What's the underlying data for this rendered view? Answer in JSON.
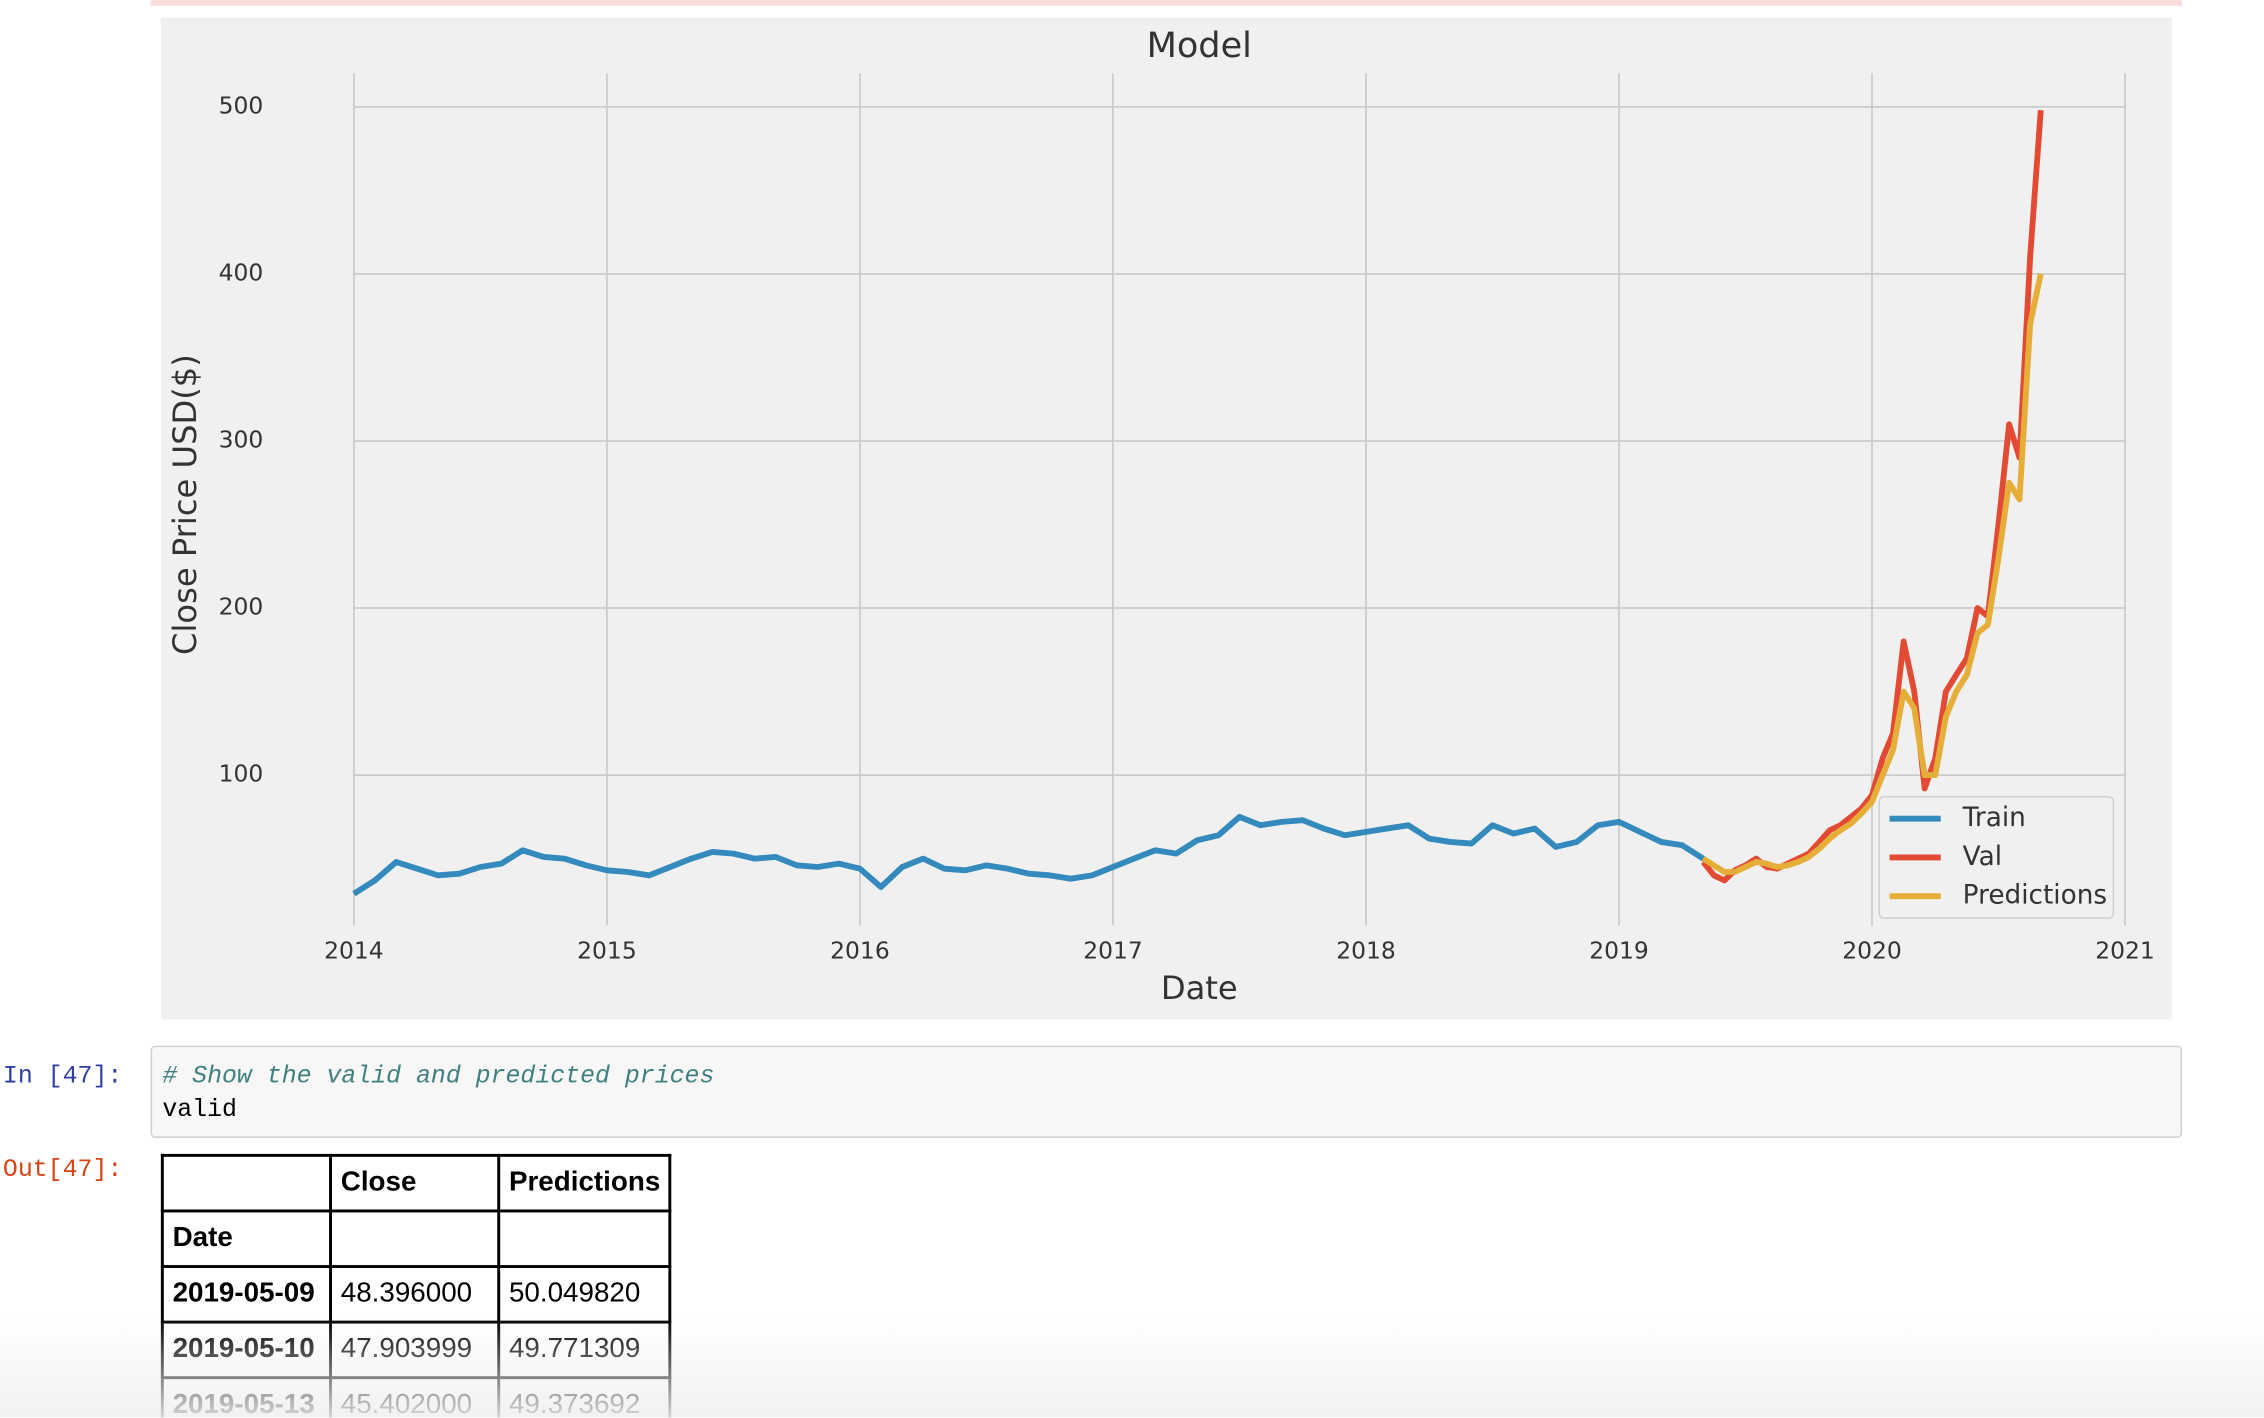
{
  "chart_data": {
    "type": "line",
    "title": "Model",
    "x_label": "Date",
    "y_label": "Close Price USD($)",
    "xlim": [
      2014,
      2021
    ],
    "xticks": [
      2014,
      2015,
      2016,
      2017,
      2018,
      2019,
      2020,
      2021
    ],
    "ylim": [
      10,
      520
    ],
    "yticks": [
      100,
      200,
      300,
      400,
      500
    ],
    "grid": true,
    "legend": "lower right",
    "series": [
      {
        "name": "Train",
        "color": "#348abd",
        "x": [
          2014,
          2014.083,
          2014.167,
          2014.25,
          2014.333,
          2014.417,
          2014.5,
          2014.583,
          2014.667,
          2014.75,
          2014.833,
          2014.917,
          2015,
          2015.083,
          2015.167,
          2015.25,
          2015.333,
          2015.417,
          2015.5,
          2015.583,
          2015.667,
          2015.75,
          2015.833,
          2015.917,
          2016,
          2016.083,
          2016.167,
          2016.25,
          2016.333,
          2016.417,
          2016.5,
          2016.583,
          2016.667,
          2016.75,
          2016.833,
          2016.917,
          2017,
          2017.083,
          2017.167,
          2017.25,
          2017.333,
          2017.417,
          2017.5,
          2017.583,
          2017.667,
          2017.75,
          2017.833,
          2017.917,
          2018,
          2018.083,
          2018.167,
          2018.25,
          2018.333,
          2018.417,
          2018.5,
          2018.583,
          2018.667,
          2018.75,
          2018.833,
          2018.917,
          2019,
          2019.083,
          2019.167,
          2019.25,
          2019.333
        ],
        "values": [
          29,
          37,
          48,
          44,
          40,
          41,
          45,
          47,
          55,
          51,
          50,
          46,
          43,
          42,
          40,
          45,
          50,
          54,
          53,
          50,
          51,
          46,
          45,
          47,
          44,
          33,
          45,
          50,
          44,
          43,
          46,
          44,
          41,
          40,
          38,
          40,
          45,
          50,
          55,
          53,
          61,
          64,
          75,
          70,
          72,
          73,
          68,
          64,
          66,
          68,
          70,
          62,
          60,
          59,
          70,
          65,
          68,
          57,
          60,
          70,
          72,
          66,
          60,
          58,
          50
        ]
      },
      {
        "name": "Val",
        "color": "#e24a33",
        "x": [
          2019.333,
          2019.375,
          2019.417,
          2019.458,
          2019.5,
          2019.542,
          2019.583,
          2019.625,
          2019.667,
          2019.708,
          2019.75,
          2019.792,
          2019.833,
          2019.875,
          2019.917,
          2019.958,
          2020,
          2020.042,
          2020.083,
          2020.125,
          2020.167,
          2020.208,
          2020.25,
          2020.292,
          2020.333,
          2020.375,
          2020.417,
          2020.458,
          2020.5,
          2020.542,
          2020.583,
          2020.625,
          2020.667
        ],
        "values": [
          48,
          40,
          37,
          43,
          46,
          50,
          45,
          44,
          47,
          50,
          53,
          60,
          67,
          70,
          75,
          80,
          88,
          110,
          125,
          180,
          150,
          92,
          110,
          150,
          160,
          170,
          200,
          195,
          250,
          310,
          290,
          410,
          498
        ]
      },
      {
        "name": "Predictions",
        "color": "#e5ae38",
        "x": [
          2019.333,
          2019.375,
          2019.417,
          2019.458,
          2019.5,
          2019.542,
          2019.583,
          2019.625,
          2019.667,
          2019.708,
          2019.75,
          2019.792,
          2019.833,
          2019.875,
          2019.917,
          2019.958,
          2020,
          2020.042,
          2020.083,
          2020.125,
          2020.167,
          2020.208,
          2020.25,
          2020.292,
          2020.333,
          2020.375,
          2020.417,
          2020.458,
          2020.5,
          2020.542,
          2020.583,
          2020.625,
          2020.667
        ],
        "values": [
          50,
          46,
          42,
          42,
          45,
          48,
          47,
          45,
          46,
          48,
          51,
          56,
          62,
          67,
          71,
          77,
          84,
          100,
          115,
          150,
          140,
          100,
          100,
          135,
          150,
          160,
          185,
          190,
          230,
          275,
          265,
          370,
          400
        ]
      }
    ]
  },
  "cells": {
    "input_prompt": "In [47]:",
    "code_comment": "# Show the valid and predicted prices",
    "code_line": "valid",
    "output_prompt": "Out[47]:"
  },
  "table": {
    "columns": [
      "Close",
      "Predictions"
    ],
    "index_name": "Date",
    "rows": [
      [
        "2019-05-09",
        "48.396000",
        "50.049820"
      ],
      [
        "2019-05-10",
        "47.903999",
        "49.771309"
      ],
      [
        "2019-05-13",
        "45.402000",
        "49.373692"
      ]
    ]
  }
}
